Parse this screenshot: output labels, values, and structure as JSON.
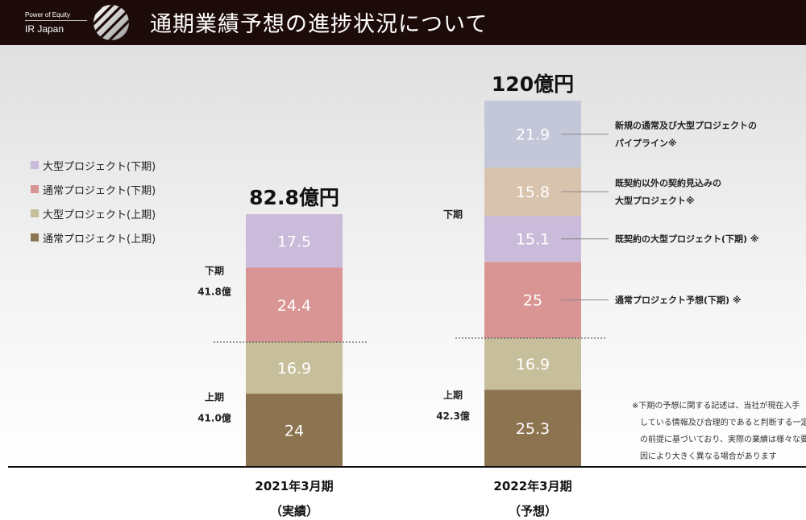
{
  "header": {
    "brand_top": "Power of Equity",
    "brand_bottom": "IR Japan",
    "title": "通期業績予想の進捗状況について"
  },
  "legend": [
    {
      "label": "大型プロジェクト(下期)",
      "color": "#c9bbd9"
    },
    {
      "label": "通常プロジェクト(下期)",
      "color": "#d99593"
    },
    {
      "label": "大型プロジェクト(上期)",
      "color": "#c7bf9b"
    },
    {
      "label": "通常プロジェクト(上期)",
      "color": "#8d7450"
    }
  ],
  "chart_data": {
    "type": "bar",
    "stacked": true,
    "unit": "億円",
    "categories": [
      {
        "line1": "2021年3月期",
        "line2": "（実績）"
      },
      {
        "line1": "2022年3月期",
        "line2": "（予想）"
      }
    ],
    "totals": [
      "82.8億円",
      "120億円"
    ],
    "bars": [
      {
        "segments": [
          {
            "value": 24,
            "label": "24",
            "color": "#8d7450"
          },
          {
            "value": 16.9,
            "label": "16.9",
            "color": "#c7bf9b"
          },
          {
            "value": 24.4,
            "label": "24.4",
            "color": "#d99593"
          },
          {
            "value": 17.5,
            "label": "17.5",
            "color": "#c9bbd9"
          }
        ],
        "half_labels": {
          "lower": {
            "name": "上期",
            "value": "41.0億"
          },
          "upper": {
            "name": "下期",
            "value": "41.8億"
          }
        }
      },
      {
        "segments": [
          {
            "value": 25.3,
            "label": "25.3",
            "color": "#8d7450"
          },
          {
            "value": 16.9,
            "label": "16.9",
            "color": "#c7bf9b"
          },
          {
            "value": 25,
            "label": "25",
            "color": "#d99593",
            "annotation": [
              "通常プロジェクト予想(下期) ※"
            ]
          },
          {
            "value": 15.1,
            "label": "15.1",
            "color": "#c9bbd9",
            "annotation": [
              "既契約の大型プロジェクト(下期) ※"
            ]
          },
          {
            "value": 15.8,
            "label": "15.8",
            "color": "#d8c3ae",
            "annotation": [
              "既契約以外の契約見込みの",
              "大型プロジェクト※"
            ]
          },
          {
            "value": 21.9,
            "label": "21.9",
            "color": "#c3c7d8",
            "annotation": [
              "新規の通常及び大型プロジェクトの",
              "パイプライン※"
            ]
          }
        ],
        "half_labels": {
          "lower": {
            "name": "上期",
            "value": "42.3億"
          },
          "upper": {
            "name": "下期",
            "value": ""
          }
        }
      }
    ]
  },
  "footnote": [
    "※下期の予想に関する記述は、当社が現在入手",
    "している情報及び合理的であると判断する一定",
    "の前提に基づいており、実際の業績は様々な要",
    "因により大きく異なる場合があります"
  ]
}
